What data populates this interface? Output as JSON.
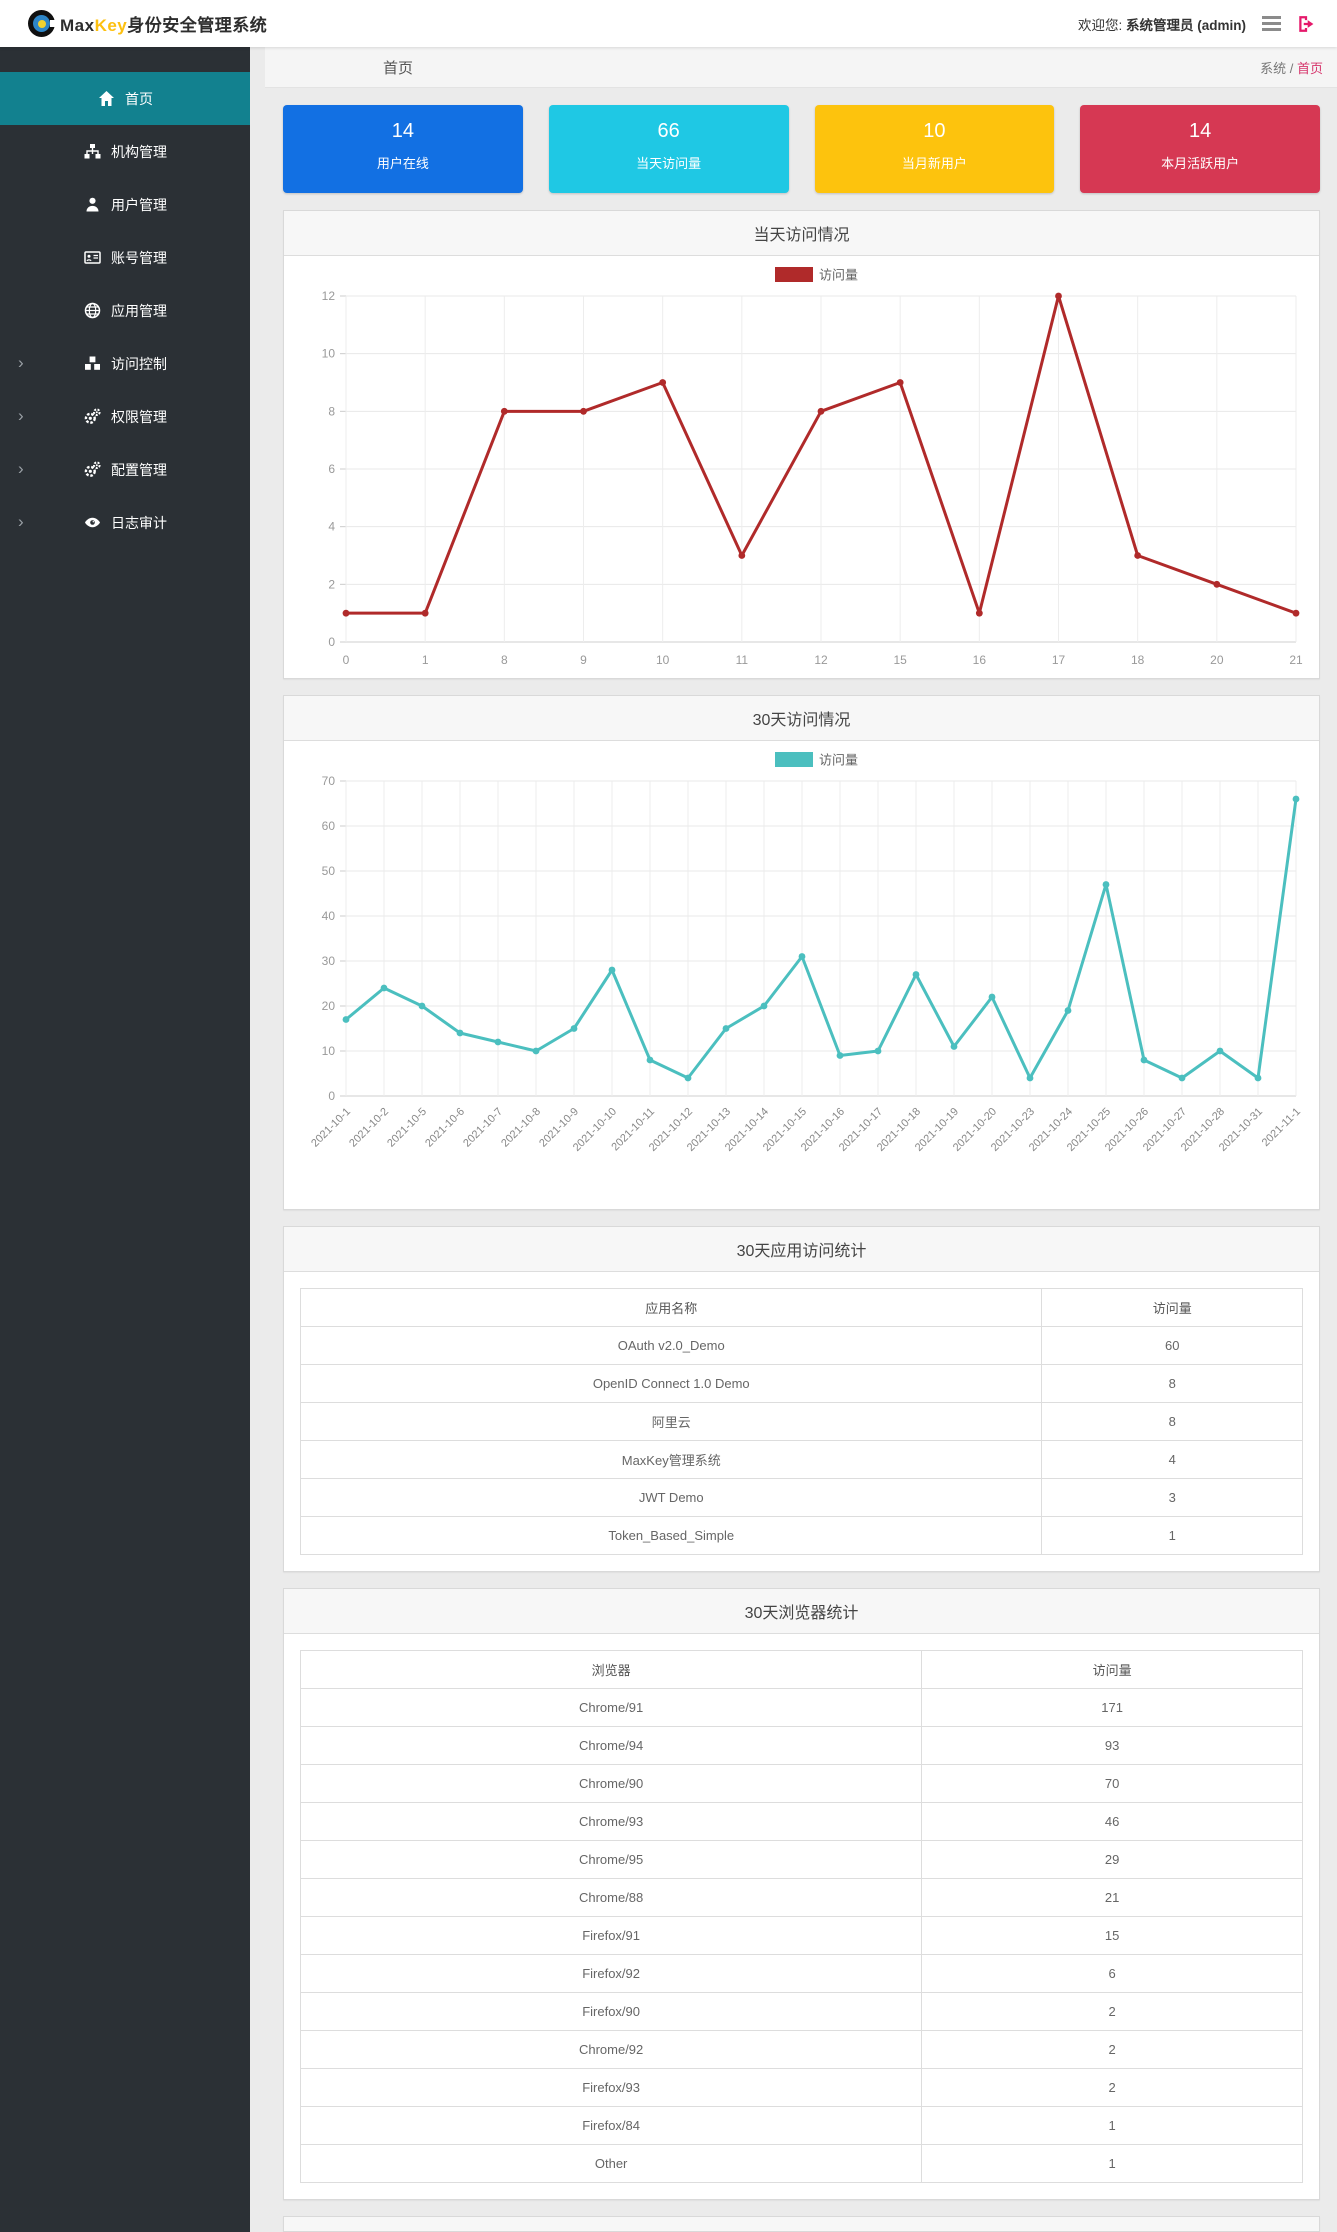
{
  "header": {
    "brand": {
      "max": "Max",
      "key": "Key",
      "suffix": "身份安全管理系统"
    },
    "welcome_prefix": "欢迎您:",
    "user": "系统管理员 (admin)"
  },
  "sidebar": {
    "items": [
      {
        "id": "home",
        "label": "首页",
        "icon": "home-icon",
        "active": true,
        "expandable": false
      },
      {
        "id": "org",
        "label": "机构管理",
        "icon": "sitemap-icon",
        "active": false,
        "expandable": false
      },
      {
        "id": "users",
        "label": "用户管理",
        "icon": "user-icon",
        "active": false,
        "expandable": false
      },
      {
        "id": "accounts",
        "label": "账号管理",
        "icon": "id-card-icon",
        "active": false,
        "expandable": false
      },
      {
        "id": "apps",
        "label": "应用管理",
        "icon": "globe-icon",
        "active": false,
        "expandable": false
      },
      {
        "id": "access",
        "label": "访问控制",
        "icon": "cubes-icon",
        "active": false,
        "expandable": true
      },
      {
        "id": "permissions",
        "label": "权限管理",
        "icon": "cogs-icon",
        "active": false,
        "expandable": true
      },
      {
        "id": "config",
        "label": "配置管理",
        "icon": "cogs-icon",
        "active": false,
        "expandable": true
      },
      {
        "id": "audit",
        "label": "日志审计",
        "icon": "eye-icon",
        "active": false,
        "expandable": true
      }
    ]
  },
  "breadcrumb": {
    "page_title": "首页",
    "root": "系统",
    "separator": " / ",
    "current": "首页"
  },
  "stat_cards": [
    {
      "id": "online-users",
      "value": "14",
      "label": "用户在线",
      "color": "#1270e3"
    },
    {
      "id": "today-visits",
      "value": "66",
      "label": "当天访问量",
      "color": "#1fc8e4"
    },
    {
      "id": "month-new-users",
      "value": "10",
      "label": "当月新用户",
      "color": "#fdc30d"
    },
    {
      "id": "month-active-users",
      "value": "14",
      "label": "本月活跃用户",
      "color": "#d63853"
    }
  ],
  "chart_data": [
    {
      "type": "line",
      "title": "当天访问情况",
      "legend": "访问量",
      "color": "#b02a2a",
      "categories": [
        "0",
        "1",
        "8",
        "9",
        "10",
        "11",
        "12",
        "15",
        "16",
        "17",
        "18",
        "20",
        "21"
      ],
      "values": [
        1,
        1,
        8,
        8,
        9,
        3,
        8,
        9,
        1,
        12,
        3,
        2,
        1
      ],
      "xlabel": "",
      "ylabel": "",
      "ylim": [
        0,
        12
      ],
      "ystep": 2,
      "grid": true,
      "legend_position": "top-center",
      "rotate_x_labels": false
    },
    {
      "type": "line",
      "title": "30天访问情况",
      "legend": "访问量",
      "color": "#4bbfbf",
      "categories": [
        "2021-10-1",
        "2021-10-2",
        "2021-10-5",
        "2021-10-6",
        "2021-10-7",
        "2021-10-8",
        "2021-10-9",
        "2021-10-10",
        "2021-10-11",
        "2021-10-12",
        "2021-10-13",
        "2021-10-14",
        "2021-10-15",
        "2021-10-16",
        "2021-10-17",
        "2021-10-18",
        "2021-10-19",
        "2021-10-20",
        "2021-10-23",
        "2021-10-24",
        "2021-10-25",
        "2021-10-26",
        "2021-10-27",
        "2021-10-28",
        "2021-10-31",
        "2021-11-1"
      ],
      "values": [
        17,
        24,
        20,
        14,
        12,
        10,
        15,
        28,
        8,
        4,
        15,
        20,
        31,
        9,
        10,
        27,
        11,
        22,
        4,
        19,
        47,
        8,
        4,
        10,
        4,
        66
      ],
      "xlabel": "",
      "ylabel": "",
      "ylim": [
        0,
        70
      ],
      "ystep": 10,
      "grid": true,
      "legend_position": "top-center",
      "rotate_x_labels": true
    }
  ],
  "tables": [
    {
      "id": "app-visits",
      "title": "30天应用访问统计",
      "columns": [
        "应用名称",
        "访问量"
      ],
      "col_widths": [
        "74%",
        "26%"
      ],
      "rows": [
        [
          "OAuth v2.0_Demo",
          "60"
        ],
        [
          "OpenID Connect 1.0 Demo",
          "8"
        ],
        [
          "阿里云",
          "8"
        ],
        [
          "MaxKey管理系统",
          "4"
        ],
        [
          "JWT Demo",
          "3"
        ],
        [
          "Token_Based_Simple",
          "1"
        ]
      ]
    },
    {
      "id": "browser-stats",
      "title": "30天浏览器统计",
      "columns": [
        "浏览器",
        "访问量"
      ],
      "col_widths": [
        "62%",
        "38%"
      ],
      "rows": [
        [
          "Chrome/91",
          "171"
        ],
        [
          "Chrome/94",
          "93"
        ],
        [
          "Chrome/90",
          "70"
        ],
        [
          "Chrome/93",
          "46"
        ],
        [
          "Chrome/95",
          "29"
        ],
        [
          "Chrome/88",
          "21"
        ],
        [
          "Firefox/91",
          "15"
        ],
        [
          "Firefox/92",
          "6"
        ],
        [
          "Firefox/90",
          "2"
        ],
        [
          "Chrome/92",
          "2"
        ],
        [
          "Firefox/93",
          "2"
        ],
        [
          "Firefox/84",
          "1"
        ],
        [
          "Other",
          "1"
        ]
      ]
    }
  ]
}
